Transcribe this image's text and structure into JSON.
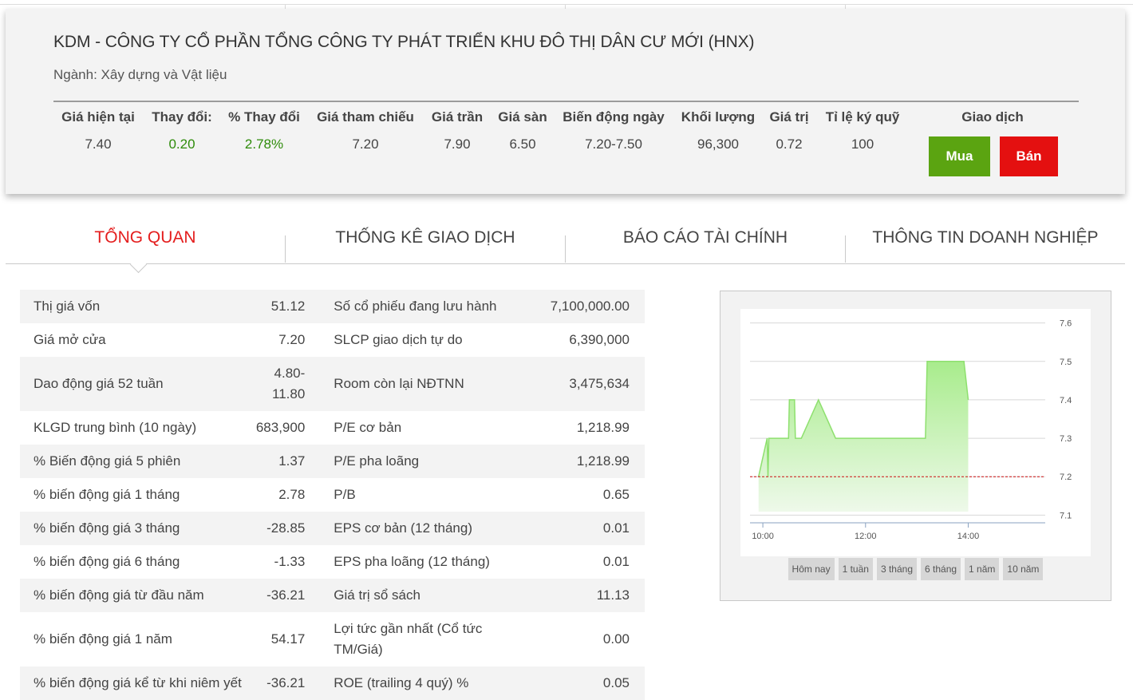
{
  "company": {
    "title": "KDM - CÔNG TY CỔ PHẦN TỔNG CÔNG TY PHÁT TRIỂN KHU ĐÔ THỊ DÂN CƯ MỚI (HNX)",
    "industry": "Ngành: Xây dựng và Vật liệu"
  },
  "summary": [
    {
      "label": "Giá hiện tại",
      "value": "7.40"
    },
    {
      "label": "Thay đổi:",
      "value": "0.20"
    },
    {
      "label": "% Thay đổi",
      "value": "2.78%"
    },
    {
      "label": "Giá tham chiếu",
      "value": "7.20"
    },
    {
      "label": "Giá trần",
      "value": "7.90"
    },
    {
      "label": "Giá sàn",
      "value": "6.50"
    },
    {
      "label": "Biến động ngày",
      "value": "7.20-7.50"
    },
    {
      "label": "Khối lượng",
      "value": "96,300"
    },
    {
      "label": "Giá trị",
      "value": "0.72"
    },
    {
      "label": "Tỉ lệ ký quỹ",
      "value": "100"
    }
  ],
  "trade": {
    "label": "Giao dịch",
    "buy": "Mua",
    "sell": "Bán"
  },
  "colors": {
    "up": "#2e8b0a",
    "buy": "#5ba411",
    "sell": "#e41010",
    "active_tab": "#e41e1e"
  },
  "tabs": [
    {
      "label": "TỔNG QUAN",
      "active": true
    },
    {
      "label": "THỐNG KÊ GIAO DỊCH",
      "active": false
    },
    {
      "label": "BÁO CÁO TÀI CHÍNH",
      "active": false
    },
    {
      "label": "THÔNG TIN DOANH NGHIỆP",
      "active": false
    }
  ],
  "stats": [
    {
      "l1": "Thị giá vốn",
      "v1": "51.12",
      "l2": "Số cổ phiếu đang lưu hành",
      "v2": "7,100,000.00"
    },
    {
      "l1": "Giá mở cửa",
      "v1": "7.20",
      "l2": "SLCP giao dịch tự do",
      "v2": "6,390,000"
    },
    {
      "l1": "Dao động giá 52 tuần",
      "v1": "4.80-11.80",
      "l2": "Room còn lại NĐTNN",
      "v2": "3,475,634"
    },
    {
      "l1": "KLGD trung bình (10 ngày)",
      "v1": "683,900",
      "l2": "P/E cơ bản",
      "v2": "1,218.99"
    },
    {
      "l1": "% Biến động giá 5 phiên",
      "v1": "1.37",
      "l2": "P/E pha loãng",
      "v2": "1,218.99"
    },
    {
      "l1": "% biến động giá 1 tháng",
      "v1": "2.78",
      "l2": "P/B",
      "v2": "0.65"
    },
    {
      "l1": "% biến động giá 3 tháng",
      "v1": "-28.85",
      "l2": "EPS cơ bản (12 tháng)",
      "v2": "0.01"
    },
    {
      "l1": "% biến động giá 6 tháng",
      "v1": "-1.33",
      "l2": "EPS pha loãng (12 tháng)",
      "v2": "0.01"
    },
    {
      "l1": "% biến động giá từ đầu năm",
      "v1": "-36.21",
      "l2": "Giá trị sổ sách",
      "v2": "11.13"
    },
    {
      "l1": "% biến động giá 1 năm",
      "v1": "54.17",
      "l2": "Lợi tức gần nhất (Cổ tức TM/Giá)",
      "v2": "0.00"
    },
    {
      "l1": "% biến động giá kể từ khi niêm yết",
      "v1": "-36.21",
      "l2": "ROE (trailing 4 quý) %",
      "v2": "0.05"
    }
  ],
  "chart_data": {
    "type": "area",
    "x_ticks": [
      "10:00",
      "12:00",
      "14:00"
    ],
    "y_ticks": [
      7.1,
      7.2,
      7.3,
      7.4,
      7.5,
      7.6
    ],
    "ylim": [
      7.08,
      7.62
    ],
    "xlim": [
      "09:45",
      "15:30"
    ],
    "reference_line": 7.2,
    "grid": true,
    "series": [
      {
        "points": [
          [
            "09:55",
            7.2
          ],
          [
            "10:05",
            7.3
          ],
          [
            "10:06",
            7.2
          ],
          [
            "10:07",
            7.3
          ],
          [
            "10:30",
            7.3
          ],
          [
            "10:31",
            7.4
          ],
          [
            "10:37",
            7.4
          ],
          [
            "10:38",
            7.3
          ],
          [
            "10:45",
            7.3
          ],
          [
            "11:05",
            7.4
          ],
          [
            "11:25",
            7.3
          ],
          [
            "13:10",
            7.3
          ],
          [
            "13:12",
            7.5
          ],
          [
            "13:55",
            7.5
          ],
          [
            "14:00",
            7.4
          ]
        ]
      }
    ],
    "colors": {
      "fill_top": "#a8ec8c",
      "fill_bottom": "#eef9ea",
      "line": "#8ee06e",
      "reference": "#cc1111",
      "grid": "#d8d8d8"
    }
  },
  "ranges": [
    "Hôm nay",
    "1 tuần",
    "3 tháng",
    "6 tháng",
    "1 năm",
    "10 năm"
  ]
}
